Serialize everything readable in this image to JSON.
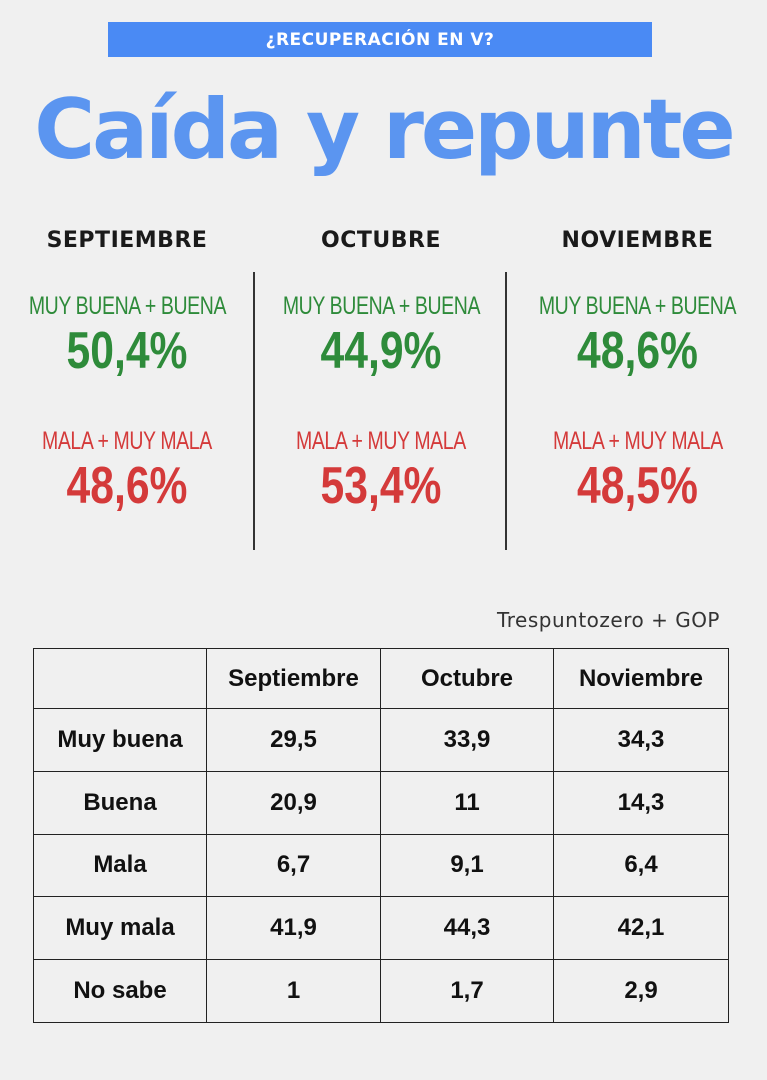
{
  "banner": "¿RECUPERACIÓN EN V?",
  "headline": "Caída y repunte",
  "summary": [
    {
      "month": "SEPTIEMBRE",
      "good_label": "MUY BUENA + BUENA",
      "good_pct": "50,4%",
      "bad_label": "MALA + MUY MALA",
      "bad_pct": "48,6%"
    },
    {
      "month": "OCTUBRE",
      "good_label": "MUY BUENA + BUENA",
      "good_pct": "44,9%",
      "bad_label": "MALA + MUY MALA",
      "bad_pct": "53,4%"
    },
    {
      "month": "NOVIEMBRE",
      "good_label": "MUY BUENA + BUENA",
      "good_pct": "48,6%",
      "bad_label": "MALA + MUY MALA",
      "bad_pct": "48,5%"
    }
  ],
  "source": "Trespuntozero + GOP",
  "colors": {
    "banner": "#4a8af4",
    "headline": "#5b95f0",
    "good": "#2e8b3a",
    "bad": "#d43a3a"
  },
  "chart_data": {
    "type": "table",
    "columns": [
      "",
      "Septiembre",
      "Octubre",
      "Noviembre"
    ],
    "rows": [
      [
        "Muy buena",
        "29,5",
        "33,9",
        "34,3"
      ],
      [
        "Buena",
        "20,9",
        "11",
        "14,3"
      ],
      [
        "Mala",
        "6,7",
        "9,1",
        "6,4"
      ],
      [
        "Muy mala",
        "41,9",
        "44,3",
        "42,1"
      ],
      [
        "No sabe",
        "1",
        "1,7",
        "2,9"
      ]
    ]
  }
}
